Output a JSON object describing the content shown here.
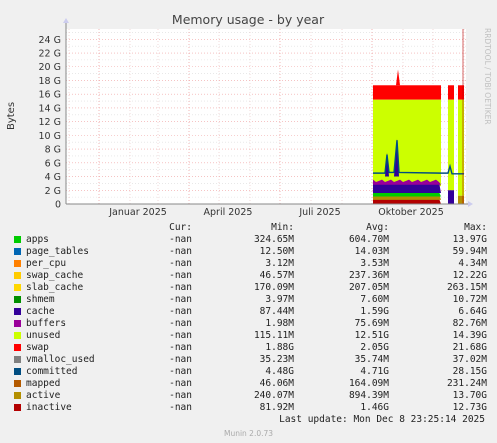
{
  "chart_data": {
    "type": "area",
    "title": "Memory usage - by year",
    "ylabel": "Bytes",
    "watermark": "RRDTOOL / TOBI OETIKER",
    "y_ticks": [
      "0",
      "2 G",
      "4 G",
      "6 G",
      "8 G",
      "10 G",
      "12 G",
      "14 G",
      "16 G",
      "18 G",
      "20 G",
      "22 G",
      "24 G"
    ],
    "y_tick_values_G": [
      0,
      2,
      4,
      6,
      8,
      10,
      12,
      14,
      16,
      18,
      20,
      22,
      24
    ],
    "ylim_G": [
      0,
      25.5
    ],
    "x_ticks": [
      "Januar 2025",
      "April 2025",
      "Juli 2025",
      "Oktober 2025"
    ],
    "grid": true,
    "colors": {
      "background": "#f0f0f0",
      "plot_background": "#ffffff",
      "major_grid": "#f0a0a0",
      "minor_grid": "#dcdcdc",
      "axis": "#888888",
      "arrow": "#ccccee"
    }
  },
  "legend": {
    "headers": {
      "cur": "Cur:",
      "min": "Min:",
      "avg": "Avg:",
      "max": "Max:"
    },
    "rows": [
      {
        "name": "apps",
        "color": "#00cc00",
        "cur": "-nan",
        "min": "324.65M",
        "avg": "604.70M",
        "max": "13.97G"
      },
      {
        "name": "page_tables",
        "color": "#0066b3",
        "cur": "-nan",
        "min": "12.50M",
        "avg": "14.03M",
        "max": "59.94M"
      },
      {
        "name": "per_cpu",
        "color": "#ff8000",
        "cur": "-nan",
        "min": "3.12M",
        "avg": "3.53M",
        "max": "4.34M"
      },
      {
        "name": "swap_cache",
        "color": "#ffcc00",
        "cur": "-nan",
        "min": "46.57M",
        "avg": "237.36M",
        "max": "12.22G"
      },
      {
        "name": "slab_cache",
        "color": "#ffd700",
        "cur": "-nan",
        "min": "170.09M",
        "avg": "207.05M",
        "max": "263.15M"
      },
      {
        "name": "shmem",
        "color": "#008f00",
        "cur": "-nan",
        "min": "3.97M",
        "avg": "7.60M",
        "max": "10.72M"
      },
      {
        "name": "cache",
        "color": "#330099",
        "cur": "-nan",
        "min": "87.44M",
        "avg": "1.59G",
        "max": "6.64G"
      },
      {
        "name": "buffers",
        "color": "#990099",
        "cur": "-nan",
        "min": "1.98M",
        "avg": "75.69M",
        "max": "82.76M"
      },
      {
        "name": "unused",
        "color": "#ccff00",
        "cur": "-nan",
        "min": "115.11M",
        "avg": "12.51G",
        "max": "14.39G"
      },
      {
        "name": "swap",
        "color": "#ff0000",
        "cur": "-nan",
        "min": "1.88G",
        "avg": "2.05G",
        "max": "21.68G"
      },
      {
        "name": "vmalloc_used",
        "color": "#808080",
        "cur": "-nan",
        "min": "35.23M",
        "avg": "35.74M",
        "max": "37.02M"
      },
      {
        "name": "committed",
        "color": "#004d80",
        "cur": "-nan",
        "min": "4.48G",
        "avg": "4.71G",
        "max": "28.15G"
      },
      {
        "name": "mapped",
        "color": "#b35a00",
        "cur": "-nan",
        "min": "46.06M",
        "avg": "164.09M",
        "max": "231.24M"
      },
      {
        "name": "active",
        "color": "#b38f00",
        "cur": "-nan",
        "min": "240.07M",
        "avg": "894.39M",
        "max": "13.70G"
      },
      {
        "name": "inactive",
        "color": "#b30000",
        "cur": "-nan",
        "min": "81.92M",
        "avg": "1.46G",
        "max": "12.73G"
      }
    ]
  },
  "footer": {
    "last_update": "Last update: Mon Dec  8 23:25:14 2025",
    "generator": "Munin 2.0.73"
  }
}
